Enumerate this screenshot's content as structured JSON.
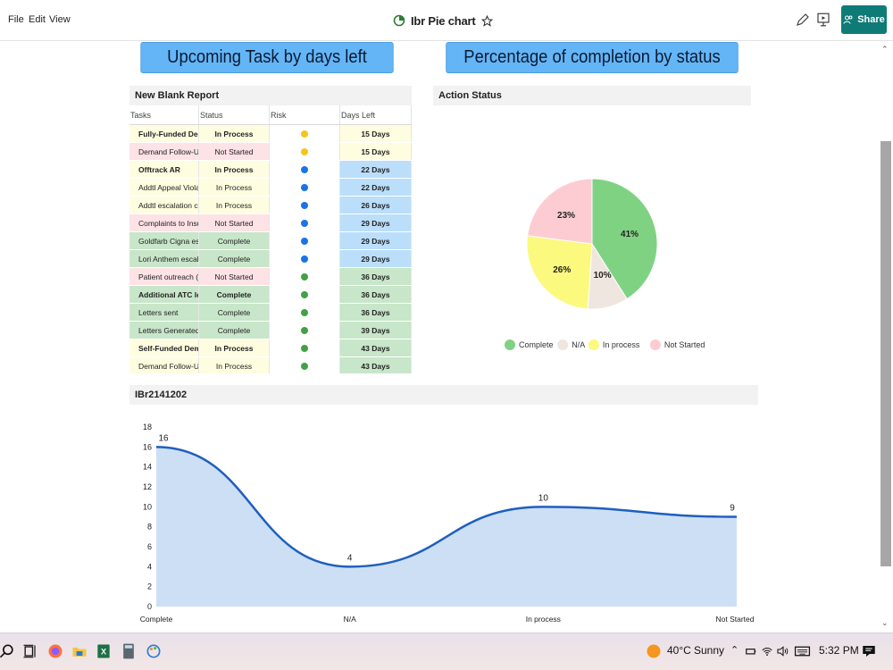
{
  "menu": {
    "file": "File",
    "edit": "Edit",
    "view": "View"
  },
  "app": {
    "title": "Ibr Pie chart",
    "share_label": "Share"
  },
  "banners": {
    "left": "Upcoming Task by days left",
    "right": "Percentage of completion by status"
  },
  "table": {
    "title": "New Blank Report",
    "headers": [
      "Tasks",
      "Status",
      "Risk",
      "Days Left"
    ],
    "rows": [
      {
        "task": "Fully-Funded Dema",
        "status": "In Process",
        "risk": "yellow",
        "days": "15 Days",
        "bold": true
      },
      {
        "task": "Demand Follow-Up (c",
        "status": "Not Started",
        "risk": "yellow",
        "days": "15 Days",
        "bold": false
      },
      {
        "task": "Offtrack AR",
        "status": "In Process",
        "risk": "blue",
        "days": "22 Days",
        "bold": true
      },
      {
        "task": "Addtl Appeal Violation",
        "status": "In Process",
        "risk": "blue",
        "days": "22 Days",
        "bold": false
      },
      {
        "task": "Addtl escalation conta",
        "status": "In Process",
        "risk": "blue",
        "days": "26 Days",
        "bold": false
      },
      {
        "task": "Complaints to Insurer",
        "status": "Not Started",
        "risk": "blue",
        "days": "29 Days",
        "bold": false
      },
      {
        "task": "Goldfarb Cigna escal",
        "status": "Complete",
        "risk": "blue",
        "days": "29 Days",
        "bold": false
      },
      {
        "task": "Lori Anthem escalatio",
        "status": "Complete",
        "risk": "blue",
        "days": "29 Days",
        "bold": false
      },
      {
        "task": "Patient outreach (both",
        "status": "Not Started",
        "risk": "green",
        "days": "36 Days",
        "bold": false
      },
      {
        "task": "Additional ATC letter",
        "status": "Complete",
        "risk": "green",
        "days": "36 Days",
        "bold": true
      },
      {
        "task": "Letters sent",
        "status": "Complete",
        "risk": "green",
        "days": "36 Days",
        "bold": false
      },
      {
        "task": "Letters Generated",
        "status": "Complete",
        "risk": "green",
        "days": "39 Days",
        "bold": false
      },
      {
        "task": "Self-Funded Deman",
        "status": "In Process",
        "risk": "green",
        "days": "43 Days",
        "bold": true
      },
      {
        "task": "Demand Follow-Up (c",
        "status": "In Process",
        "risk": "green",
        "days": "43 Days",
        "bold": false
      }
    ]
  },
  "colors": {
    "complete": "#c8e6c9",
    "not_started": "#fde2e6",
    "in_process": "#fffde0",
    "days_blue": "#bbdefb",
    "days_green": "#c8e6c9",
    "days_yellow": "#fffde0",
    "dot_yellow": "#f5c518",
    "dot_blue": "#1a73e8",
    "dot_green": "#43a047"
  },
  "chart_data": [
    {
      "type": "pie",
      "title": "Action Status",
      "slices": [
        {
          "label": "Complete",
          "value": 41,
          "display": "41%",
          "color": "#80d283"
        },
        {
          "label": "N/A",
          "value": 10,
          "display": "10%",
          "color": "#efe6e0"
        },
        {
          "label": "In process",
          "value": 26,
          "display": "26%",
          "color": "#fbf97e"
        },
        {
          "label": "Not Started",
          "value": 23,
          "display": "23%",
          "color": "#fdccd2"
        }
      ],
      "legend_position": "bottom"
    },
    {
      "type": "area",
      "title": "IBr2141202",
      "categories": [
        "Complete",
        "N/A",
        "In process",
        "Not Started"
      ],
      "values": [
        16,
        4,
        10,
        9
      ],
      "ylim": [
        0,
        18
      ],
      "yticks": [
        "0",
        "2",
        "4",
        "6",
        "8",
        "10",
        "12",
        "14",
        "16",
        "18"
      ],
      "line_color": "#1f5fbf",
      "fill_color": "#cddff4"
    }
  ],
  "taskbar": {
    "temperature": "40°C",
    "weather": "Sunny",
    "time": "5:32 PM"
  }
}
